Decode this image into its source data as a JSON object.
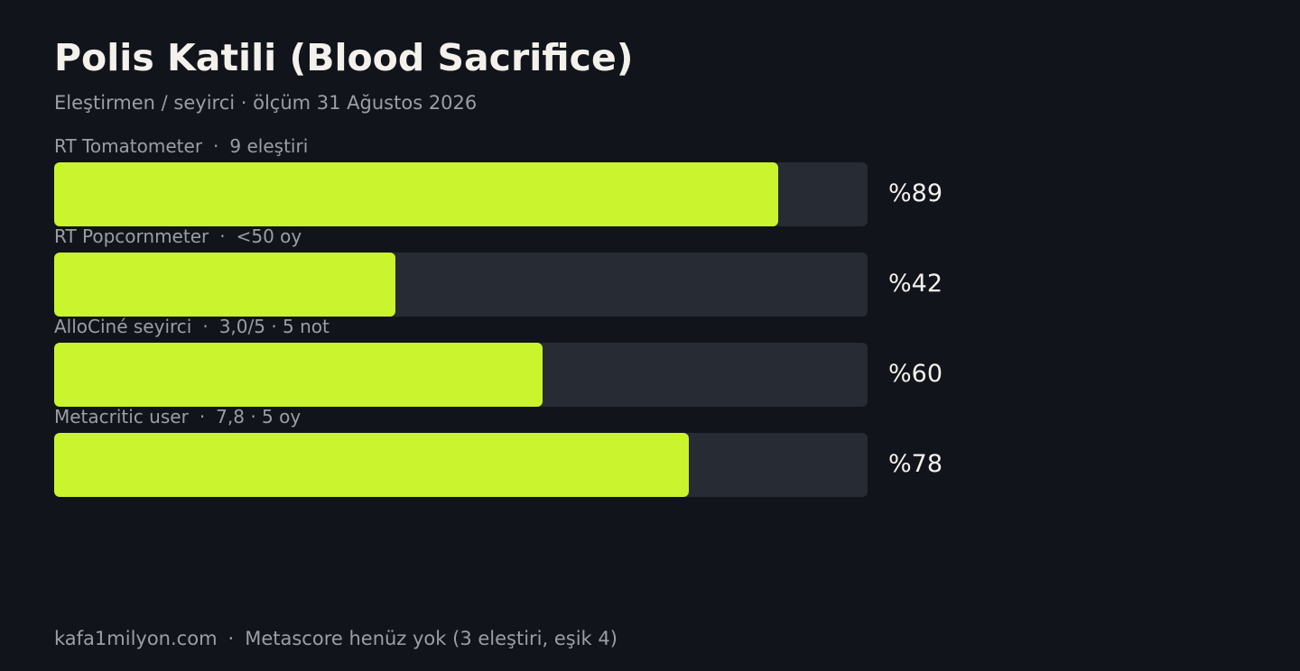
{
  "header": {
    "title": "Polis Katili (Blood Sacrifice)",
    "subtitle": "Eleştirmen / seyirci · ölçüm 31 Ağustos 2026"
  },
  "colors": {
    "background": "#11141b",
    "bar_fill": "#caf42e",
    "bar_track": "#272b33",
    "text_primary": "#f4f1ec",
    "text_secondary": "#9c9ea4"
  },
  "chart_data": {
    "type": "bar",
    "orientation": "horizontal",
    "xlim": [
      0,
      100
    ],
    "unit": "percent",
    "categories": [
      "RT Tomatometer",
      "RT Popcornmeter",
      "AlloCiné seyirci",
      "Metacritic user"
    ],
    "details": [
      "9 eleştiri",
      "<50 oy",
      "3,0/5 · 5 not",
      "7,8 · 5 oy"
    ],
    "values": [
      89,
      42,
      60,
      78
    ],
    "value_labels": [
      "%89",
      "%42",
      "%60",
      "%78"
    ],
    "separator": "·",
    "grid": false,
    "legend": "none"
  },
  "footer": {
    "site": "kafa1milyon.com",
    "separator": "·",
    "note": "Metascore henüz yok (3 eleştiri, eşik 4)"
  }
}
